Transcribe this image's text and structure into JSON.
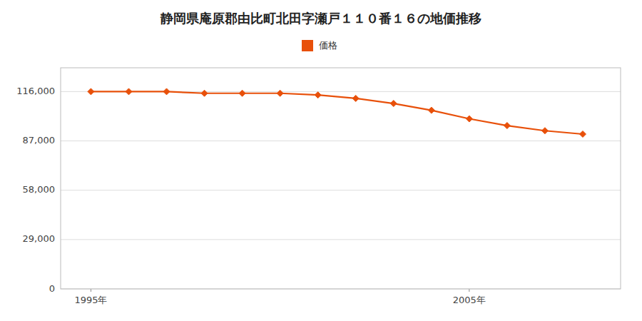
{
  "chart_data": {
    "type": "line",
    "title": "静岡県庵原郡由比町北田字瀬戸１１０番１６の地価推移",
    "x": [
      1995,
      1996,
      1997,
      1998,
      1999,
      2000,
      2001,
      2002,
      2003,
      2004,
      2005,
      2006,
      2007,
      2008
    ],
    "series": [
      {
        "name": "価格",
        "color": "#E8500A",
        "marker": "diamond",
        "values": [
          116000,
          116000,
          116000,
          115000,
          115000,
          115000,
          114000,
          112000,
          109000,
          105000,
          100000,
          96000,
          93000,
          91000
        ]
      }
    ],
    "xlim": [
      1994.2,
      2009.0
    ],
    "xticks": [
      {
        "value": 1995,
        "label": "1995年"
      },
      {
        "value": 2005,
        "label": "2005年"
      }
    ],
    "ylim": [
      0,
      130000
    ],
    "yticks": [
      0,
      {
        "value": 29000,
        "label": "29,000"
      },
      {
        "value": 58000,
        "label": "58,000"
      },
      {
        "value": 87000,
        "label": "87,000"
      },
      {
        "value": 116000,
        "label": "116,000"
      }
    ],
    "grid": true,
    "legend": "top"
  }
}
